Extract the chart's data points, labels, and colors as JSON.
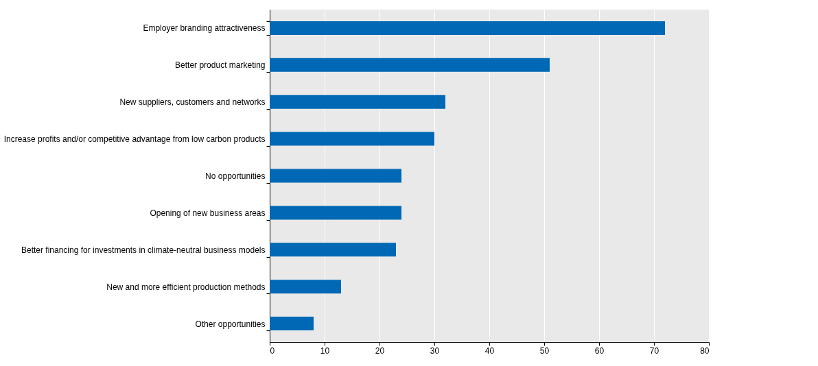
{
  "chart_data": {
    "type": "bar",
    "orientation": "horizontal",
    "categories": [
      "Employer branding attractiveness",
      "Better product marketing",
      "New suppliers, customers and networks",
      "Increase profits and/or competitive advantage from low carbon products",
      "No opportunities",
      "Opening of new business areas",
      "Better financing for investments in climate-neutral business models",
      "New and more efficient production methods",
      "Other opportunities"
    ],
    "values": [
      72,
      51,
      32,
      30,
      24,
      24,
      23,
      13,
      8
    ],
    "color": "#0068b4",
    "xlim": [
      0,
      80
    ],
    "xticks": [
      0,
      10,
      20,
      30,
      40,
      50,
      60,
      70,
      80
    ],
    "grid": "x"
  }
}
